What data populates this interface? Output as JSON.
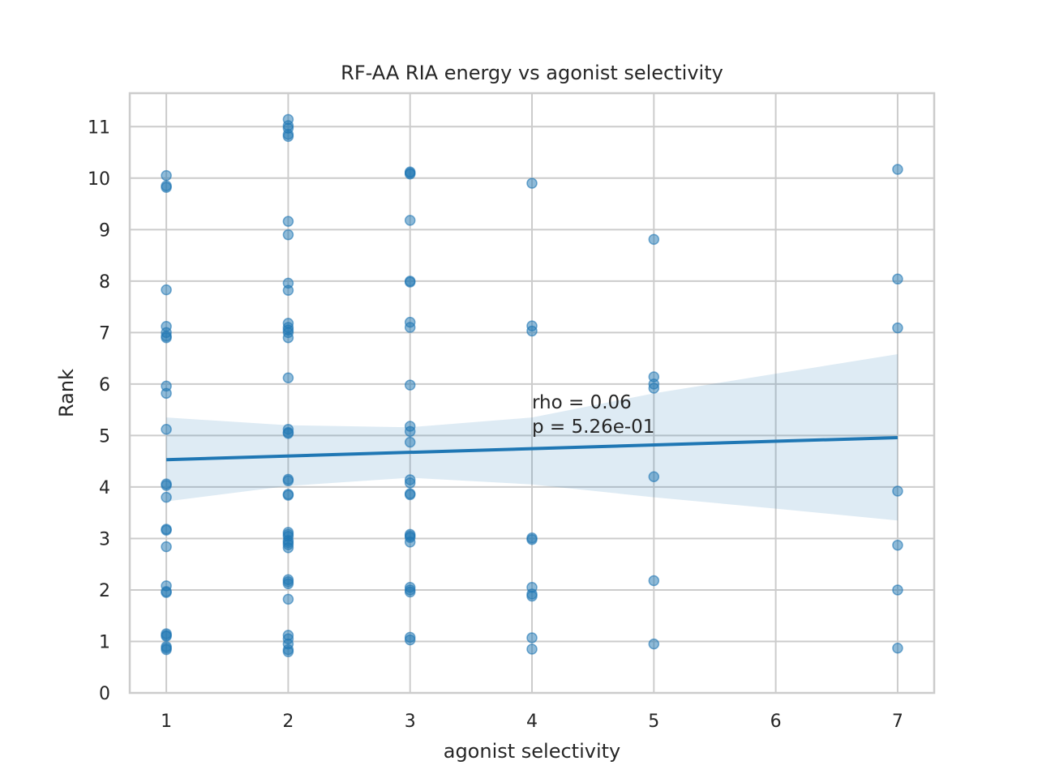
{
  "chart_data": {
    "type": "scatter",
    "title": "RF-AA RIA energy vs agonist selectivity",
    "xlabel": "agonist selectivity",
    "ylabel": "Rank",
    "xlim": [
      0.7,
      7.3
    ],
    "ylim": [
      0,
      11.65
    ],
    "xticks": [
      1,
      2,
      3,
      4,
      5,
      6,
      7
    ],
    "yticks": [
      0,
      1,
      2,
      3,
      4,
      5,
      6,
      7,
      8,
      9,
      10,
      11
    ],
    "grid": true,
    "legend": "none",
    "colors": {
      "point": "#1f77b4",
      "line": "#1f77b4",
      "band": "#1f77b4",
      "grid": "#cccccc",
      "frame": "#cccccc"
    },
    "points": [
      {
        "x": 1,
        "y": 10.05
      },
      {
        "x": 1,
        "y": 9.85
      },
      {
        "x": 1,
        "y": 9.82
      },
      {
        "x": 1,
        "y": 7.83
      },
      {
        "x": 1,
        "y": 7.12
      },
      {
        "x": 1,
        "y": 7.0
      },
      {
        "x": 1,
        "y": 6.93
      },
      {
        "x": 1,
        "y": 6.9
      },
      {
        "x": 1,
        "y": 5.96
      },
      {
        "x": 1,
        "y": 5.82
      },
      {
        "x": 1,
        "y": 5.12
      },
      {
        "x": 1,
        "y": 4.06
      },
      {
        "x": 1,
        "y": 4.03
      },
      {
        "x": 1,
        "y": 3.8
      },
      {
        "x": 1,
        "y": 3.18
      },
      {
        "x": 1,
        "y": 3.16
      },
      {
        "x": 1,
        "y": 2.84
      },
      {
        "x": 1,
        "y": 2.08
      },
      {
        "x": 1,
        "y": 1.97
      },
      {
        "x": 1,
        "y": 1.95
      },
      {
        "x": 1,
        "y": 1.15
      },
      {
        "x": 1,
        "y": 1.12
      },
      {
        "x": 1,
        "y": 1.1
      },
      {
        "x": 1,
        "y": 0.9
      },
      {
        "x": 1,
        "y": 0.87
      },
      {
        "x": 1,
        "y": 0.84
      },
      {
        "x": 2,
        "y": 11.14
      },
      {
        "x": 2,
        "y": 11.02
      },
      {
        "x": 2,
        "y": 10.97
      },
      {
        "x": 2,
        "y": 10.85
      },
      {
        "x": 2,
        "y": 10.81
      },
      {
        "x": 2,
        "y": 9.16
      },
      {
        "x": 2,
        "y": 8.9
      },
      {
        "x": 2,
        "y": 7.96
      },
      {
        "x": 2,
        "y": 7.82
      },
      {
        "x": 2,
        "y": 7.18
      },
      {
        "x": 2,
        "y": 7.1
      },
      {
        "x": 2,
        "y": 7.05
      },
      {
        "x": 2,
        "y": 7.0
      },
      {
        "x": 2,
        "y": 6.9
      },
      {
        "x": 2,
        "y": 6.12
      },
      {
        "x": 2,
        "y": 5.12
      },
      {
        "x": 2,
        "y": 5.06
      },
      {
        "x": 2,
        "y": 5.04
      },
      {
        "x": 2,
        "y": 4.15
      },
      {
        "x": 2,
        "y": 4.12
      },
      {
        "x": 2,
        "y": 3.86
      },
      {
        "x": 2,
        "y": 3.84
      },
      {
        "x": 2,
        "y": 3.12
      },
      {
        "x": 2,
        "y": 3.08
      },
      {
        "x": 2,
        "y": 3.04
      },
      {
        "x": 2,
        "y": 2.96
      },
      {
        "x": 2,
        "y": 2.92
      },
      {
        "x": 2,
        "y": 2.88
      },
      {
        "x": 2,
        "y": 2.82
      },
      {
        "x": 2,
        "y": 2.2
      },
      {
        "x": 2,
        "y": 2.16
      },
      {
        "x": 2,
        "y": 2.12
      },
      {
        "x": 2,
        "y": 1.82
      },
      {
        "x": 2,
        "y": 1.12
      },
      {
        "x": 2,
        "y": 1.05
      },
      {
        "x": 2,
        "y": 0.95
      },
      {
        "x": 2,
        "y": 0.84
      },
      {
        "x": 2,
        "y": 0.8
      },
      {
        "x": 3,
        "y": 10.12
      },
      {
        "x": 3,
        "y": 10.1
      },
      {
        "x": 3,
        "y": 10.08
      },
      {
        "x": 3,
        "y": 9.18
      },
      {
        "x": 3,
        "y": 8.0
      },
      {
        "x": 3,
        "y": 7.98
      },
      {
        "x": 3,
        "y": 7.2
      },
      {
        "x": 3,
        "y": 7.1
      },
      {
        "x": 3,
        "y": 5.98
      },
      {
        "x": 3,
        "y": 5.18
      },
      {
        "x": 3,
        "y": 5.08
      },
      {
        "x": 3,
        "y": 4.87
      },
      {
        "x": 3,
        "y": 4.14
      },
      {
        "x": 3,
        "y": 4.08
      },
      {
        "x": 3,
        "y": 3.87
      },
      {
        "x": 3,
        "y": 3.85
      },
      {
        "x": 3,
        "y": 3.08
      },
      {
        "x": 3,
        "y": 3.05
      },
      {
        "x": 3,
        "y": 3.02
      },
      {
        "x": 3,
        "y": 2.93
      },
      {
        "x": 3,
        "y": 2.05
      },
      {
        "x": 3,
        "y": 2.0
      },
      {
        "x": 3,
        "y": 1.96
      },
      {
        "x": 3,
        "y": 1.08
      },
      {
        "x": 3,
        "y": 1.03
      },
      {
        "x": 4,
        "y": 9.9
      },
      {
        "x": 4,
        "y": 7.13
      },
      {
        "x": 4,
        "y": 7.03
      },
      {
        "x": 4,
        "y": 3.01
      },
      {
        "x": 4,
        "y": 2.98
      },
      {
        "x": 4,
        "y": 2.05
      },
      {
        "x": 4,
        "y": 1.92
      },
      {
        "x": 4,
        "y": 1.88
      },
      {
        "x": 4,
        "y": 1.07
      },
      {
        "x": 4,
        "y": 0.85
      },
      {
        "x": 5,
        "y": 8.81
      },
      {
        "x": 5,
        "y": 6.14
      },
      {
        "x": 5,
        "y": 6.0
      },
      {
        "x": 5,
        "y": 5.92
      },
      {
        "x": 5,
        "y": 4.2
      },
      {
        "x": 5,
        "y": 2.18
      },
      {
        "x": 5,
        "y": 0.95
      },
      {
        "x": 7,
        "y": 10.17
      },
      {
        "x": 7,
        "y": 8.04
      },
      {
        "x": 7,
        "y": 7.09
      },
      {
        "x": 7,
        "y": 3.92
      },
      {
        "x": 7,
        "y": 2.87
      },
      {
        "x": 7,
        "y": 2.0
      },
      {
        "x": 7,
        "y": 0.87
      }
    ],
    "regression": {
      "x": [
        1,
        7
      ],
      "y": [
        4.53,
        4.96
      ]
    },
    "confidence_band": {
      "x": [
        1,
        2,
        3,
        4,
        5,
        6,
        7
      ],
      "lower": [
        3.72,
        4.02,
        4.18,
        4.05,
        3.8,
        3.58,
        3.35
      ],
      "upper": [
        5.35,
        5.2,
        5.16,
        5.35,
        5.82,
        6.2,
        6.58
      ]
    },
    "annotation": {
      "x": 4,
      "y": 5.05,
      "lines": [
        "rho = 0.06",
        "p = 5.26e-01"
      ]
    }
  }
}
